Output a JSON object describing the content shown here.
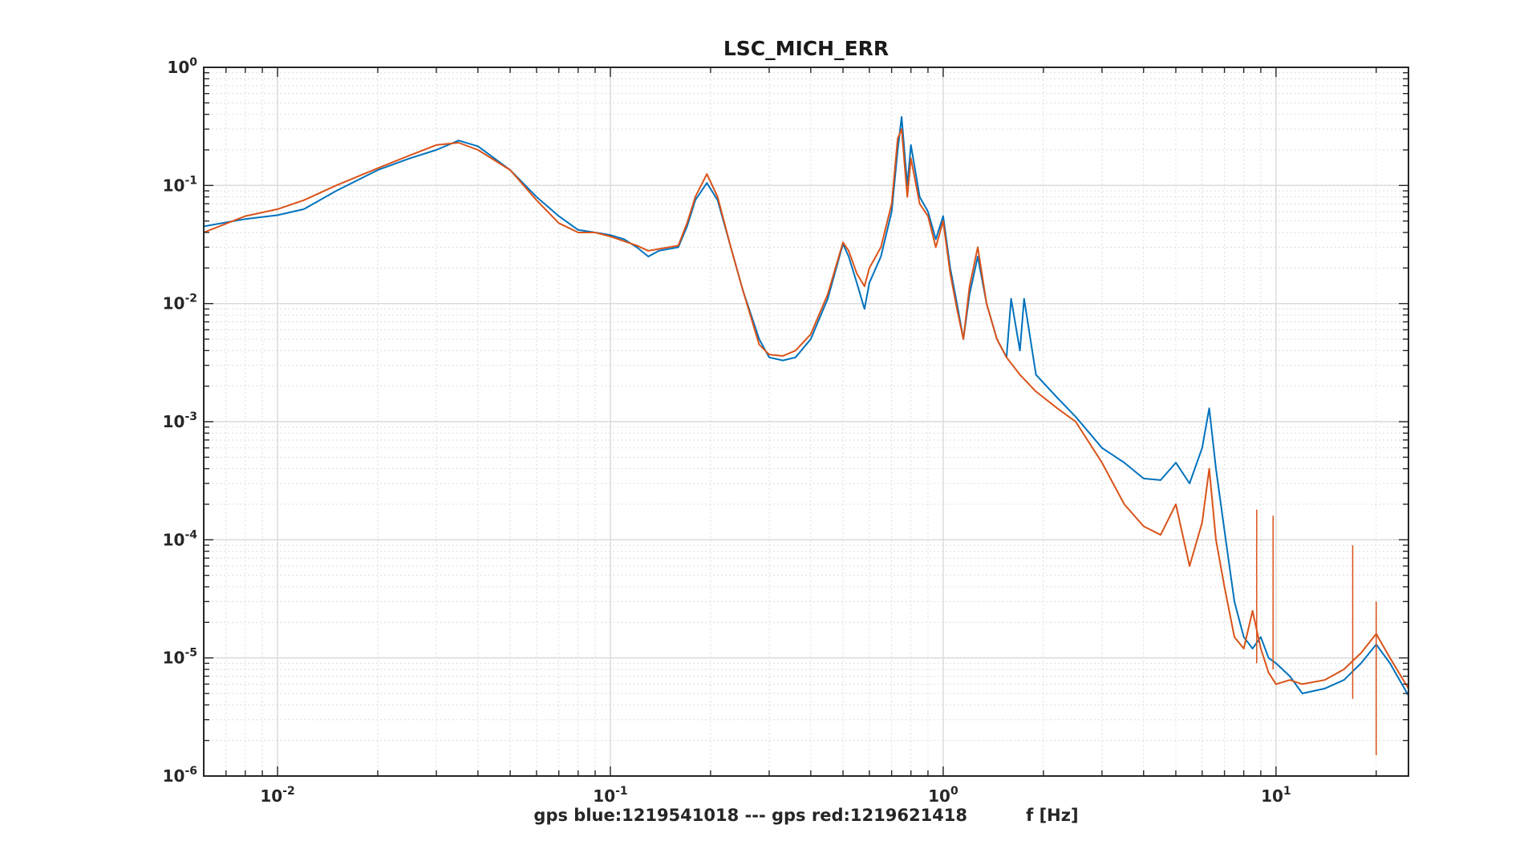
{
  "chart_data": {
    "type": "line",
    "title": "LSC_MICH_ERR",
    "xlabel": "gps blue:1219541018 --- gps red:1219621418          f [Hz]",
    "ylabel": "",
    "xscale": "log",
    "yscale": "log",
    "xlim": [
      0.006,
      25
    ],
    "ylim": [
      1e-06,
      1
    ],
    "grid": true,
    "x_tick_labels": [
      {
        "base": "10",
        "exp": "-2",
        "value": 0.01
      },
      {
        "base": "10",
        "exp": "-1",
        "value": 0.1
      },
      {
        "base": "10",
        "exp": "0",
        "value": 1
      },
      {
        "base": "10",
        "exp": "1",
        "value": 10
      }
    ],
    "y_tick_labels": [
      {
        "base": "10",
        "exp": "0",
        "value": 1
      },
      {
        "base": "10",
        "exp": "-1",
        "value": 0.1
      },
      {
        "base": "10",
        "exp": "-2",
        "value": 0.01
      },
      {
        "base": "10",
        "exp": "-3",
        "value": 0.001
      },
      {
        "base": "10",
        "exp": "-4",
        "value": 0.0001
      },
      {
        "base": "10",
        "exp": "-5",
        "value": 1e-05
      },
      {
        "base": "10",
        "exp": "-6",
        "value": 1e-06
      }
    ],
    "series": [
      {
        "color": "#0072BD",
        "points": [
          [
            0.006,
            0.045
          ],
          [
            0.008,
            0.052
          ],
          [
            0.01,
            0.056
          ],
          [
            0.012,
            0.063
          ],
          [
            0.015,
            0.09
          ],
          [
            0.02,
            0.135
          ],
          [
            0.025,
            0.17
          ],
          [
            0.03,
            0.2
          ],
          [
            0.035,
            0.24
          ],
          [
            0.04,
            0.215
          ],
          [
            0.05,
            0.135
          ],
          [
            0.06,
            0.08
          ],
          [
            0.07,
            0.055
          ],
          [
            0.08,
            0.042
          ],
          [
            0.09,
            0.04
          ],
          [
            0.1,
            0.038
          ],
          [
            0.11,
            0.035
          ],
          [
            0.12,
            0.03
          ],
          [
            0.13,
            0.025
          ],
          [
            0.14,
            0.028
          ],
          [
            0.16,
            0.03
          ],
          [
            0.17,
            0.045
          ],
          [
            0.18,
            0.075
          ],
          [
            0.195,
            0.105
          ],
          [
            0.21,
            0.075
          ],
          [
            0.23,
            0.03
          ],
          [
            0.25,
            0.013
          ],
          [
            0.28,
            0.005
          ],
          [
            0.3,
            0.0035
          ],
          [
            0.33,
            0.0033
          ],
          [
            0.36,
            0.0035
          ],
          [
            0.4,
            0.005
          ],
          [
            0.45,
            0.011
          ],
          [
            0.5,
            0.032
          ],
          [
            0.52,
            0.025
          ],
          [
            0.55,
            0.015
          ],
          [
            0.58,
            0.009
          ],
          [
            0.6,
            0.015
          ],
          [
            0.65,
            0.025
          ],
          [
            0.7,
            0.06
          ],
          [
            0.73,
            0.2
          ],
          [
            0.75,
            0.38
          ],
          [
            0.78,
            0.1
          ],
          [
            0.8,
            0.22
          ],
          [
            0.85,
            0.08
          ],
          [
            0.9,
            0.06
          ],
          [
            0.95,
            0.035
          ],
          [
            1.0,
            0.055
          ],
          [
            1.05,
            0.02
          ],
          [
            1.1,
            0.01
          ],
          [
            1.15,
            0.005
          ],
          [
            1.2,
            0.012
          ],
          [
            1.27,
            0.025
          ],
          [
            1.35,
            0.01
          ],
          [
            1.45,
            0.005
          ],
          [
            1.55,
            0.0035
          ],
          [
            1.6,
            0.011
          ],
          [
            1.7,
            0.004
          ],
          [
            1.75,
            0.011
          ],
          [
            1.9,
            0.0025
          ],
          [
            2.2,
            0.0016
          ],
          [
            2.5,
            0.0011
          ],
          [
            3.0,
            0.0006
          ],
          [
            3.5,
            0.00045
          ],
          [
            4.0,
            0.00033
          ],
          [
            4.5,
            0.00032
          ],
          [
            5.0,
            0.00045
          ],
          [
            5.5,
            0.0003
          ],
          [
            6.0,
            0.0006
          ],
          [
            6.3,
            0.0013
          ],
          [
            6.6,
            0.0004
          ],
          [
            7.0,
            0.00012
          ],
          [
            7.5,
            3e-05
          ],
          [
            8.0,
            1.5e-05
          ],
          [
            8.5,
            1.2e-05
          ],
          [
            9.0,
            1.5e-05
          ],
          [
            9.5,
            1e-05
          ],
          [
            10.0,
            9e-06
          ],
          [
            11.0,
            7e-06
          ],
          [
            12.0,
            5e-06
          ],
          [
            14.0,
            5.5e-06
          ],
          [
            16.0,
            6.5e-06
          ],
          [
            18.0,
            9e-06
          ],
          [
            20.0,
            1.3e-05
          ],
          [
            22.0,
            9e-06
          ],
          [
            25.0,
            4.8e-06
          ]
        ]
      },
      {
        "color": "#D95319",
        "points": [
          [
            0.006,
            0.04
          ],
          [
            0.008,
            0.055
          ],
          [
            0.01,
            0.063
          ],
          [
            0.012,
            0.075
          ],
          [
            0.015,
            0.1
          ],
          [
            0.02,
            0.14
          ],
          [
            0.025,
            0.18
          ],
          [
            0.03,
            0.22
          ],
          [
            0.035,
            0.23
          ],
          [
            0.04,
            0.2
          ],
          [
            0.05,
            0.135
          ],
          [
            0.06,
            0.075
          ],
          [
            0.07,
            0.048
          ],
          [
            0.08,
            0.04
          ],
          [
            0.09,
            0.04
          ],
          [
            0.1,
            0.037
          ],
          [
            0.12,
            0.031
          ],
          [
            0.13,
            0.028
          ],
          [
            0.14,
            0.029
          ],
          [
            0.16,
            0.031
          ],
          [
            0.17,
            0.048
          ],
          [
            0.18,
            0.08
          ],
          [
            0.195,
            0.125
          ],
          [
            0.21,
            0.08
          ],
          [
            0.23,
            0.03
          ],
          [
            0.25,
            0.013
          ],
          [
            0.28,
            0.0045
          ],
          [
            0.3,
            0.0037
          ],
          [
            0.33,
            0.0036
          ],
          [
            0.36,
            0.004
          ],
          [
            0.4,
            0.0055
          ],
          [
            0.45,
            0.012
          ],
          [
            0.5,
            0.033
          ],
          [
            0.52,
            0.028
          ],
          [
            0.55,
            0.018
          ],
          [
            0.58,
            0.014
          ],
          [
            0.6,
            0.02
          ],
          [
            0.65,
            0.03
          ],
          [
            0.7,
            0.07
          ],
          [
            0.73,
            0.25
          ],
          [
            0.75,
            0.3
          ],
          [
            0.78,
            0.08
          ],
          [
            0.8,
            0.17
          ],
          [
            0.85,
            0.07
          ],
          [
            0.9,
            0.055
          ],
          [
            0.95,
            0.03
          ],
          [
            1.0,
            0.05
          ],
          [
            1.05,
            0.018
          ],
          [
            1.1,
            0.009
          ],
          [
            1.15,
            0.005
          ],
          [
            1.2,
            0.014
          ],
          [
            1.27,
            0.03
          ],
          [
            1.35,
            0.01
          ],
          [
            1.45,
            0.005
          ],
          [
            1.55,
            0.0035
          ],
          [
            1.7,
            0.0025
          ],
          [
            1.9,
            0.0018
          ],
          [
            2.2,
            0.0013
          ],
          [
            2.5,
            0.001
          ],
          [
            3.0,
            0.00045
          ],
          [
            3.5,
            0.0002
          ],
          [
            4.0,
            0.00013
          ],
          [
            4.5,
            0.00011
          ],
          [
            5.0,
            0.0002
          ],
          [
            5.5,
            6e-05
          ],
          [
            6.0,
            0.00014
          ],
          [
            6.3,
            0.0004
          ],
          [
            6.6,
            0.0001
          ],
          [
            7.0,
            4e-05
          ],
          [
            7.5,
            1.5e-05
          ],
          [
            8.0,
            1.2e-05
          ],
          [
            8.5,
            2.5e-05
          ],
          [
            9.0,
            1.2e-05
          ],
          [
            9.5,
            7.5e-06
          ],
          [
            10.0,
            6e-06
          ],
          [
            11.0,
            6.5e-06
          ],
          [
            12.0,
            6e-06
          ],
          [
            14.0,
            6.5e-06
          ],
          [
            16.0,
            8e-06
          ],
          [
            18.0,
            1.1e-05
          ],
          [
            20.0,
            1.6e-05
          ],
          [
            22.0,
            1e-05
          ],
          [
            25.0,
            5.5e-06
          ]
        ],
        "spikes": [
          [
            8.75,
            0.00018
          ],
          [
            9.8,
            0.00016
          ],
          [
            17.0,
            9e-05
          ],
          [
            20.0,
            3e-05
          ]
        ]
      }
    ]
  }
}
